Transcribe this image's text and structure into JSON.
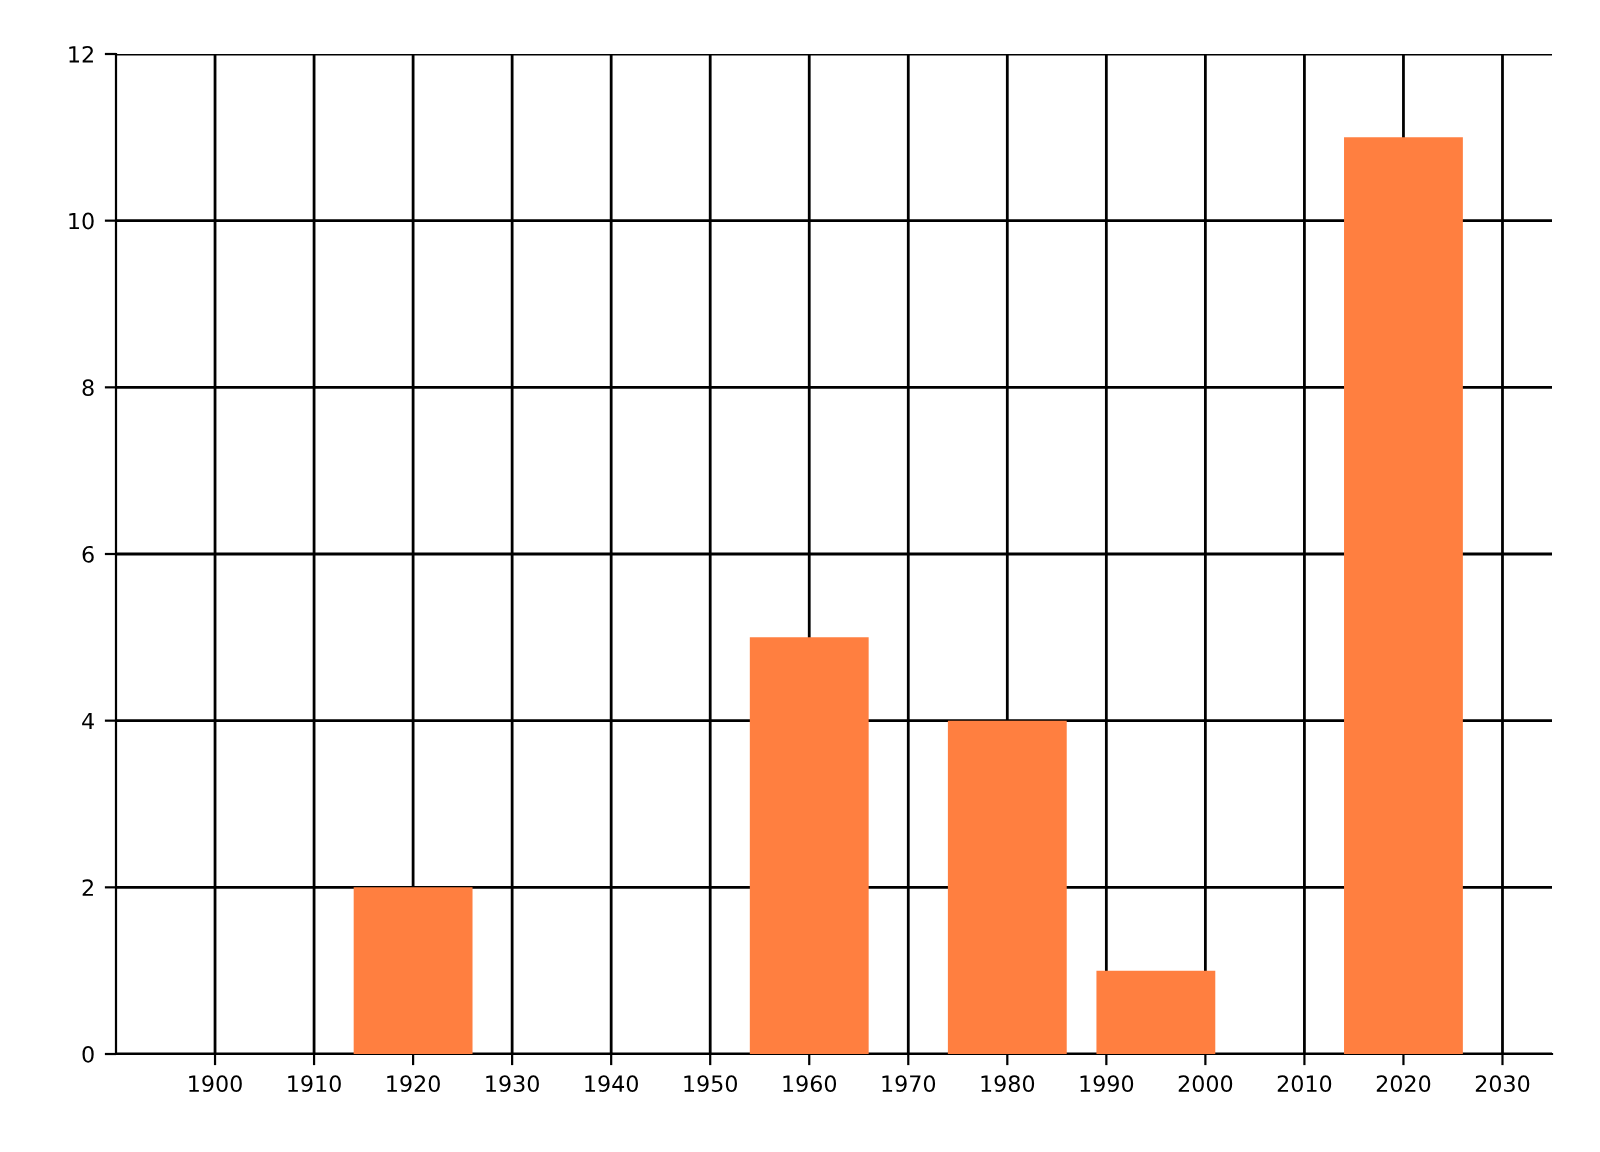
{
  "chart_data": {
    "type": "bar",
    "x": [
      1920,
      1960,
      1980,
      1995,
      2020
    ],
    "values": [
      2,
      5,
      4,
      1,
      11
    ],
    "color": "#ff7f40",
    "xlim": [
      1890,
      2035
    ],
    "xticks": [
      1900,
      1910,
      1920,
      1930,
      1940,
      1950,
      1960,
      1970,
      1980,
      1990,
      2000,
      2010,
      2020,
      2030
    ],
    "ylim": [
      0,
      12
    ],
    "yticks": [
      0,
      2,
      4,
      6,
      8,
      10,
      12
    ],
    "grid": true
  }
}
